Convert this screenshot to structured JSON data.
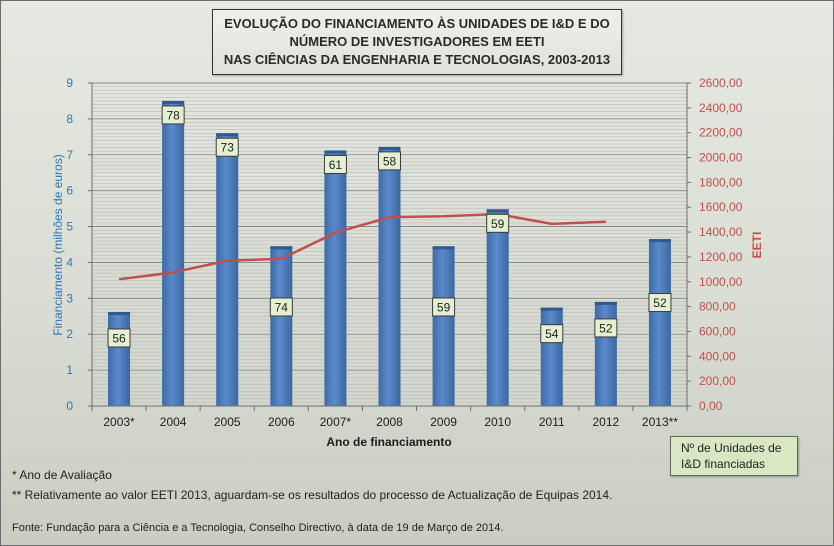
{
  "chart_data": {
    "type": "bar",
    "title_lines": [
      "EVOLUÇÃO DO FINANCIAMENTO ÀS UNIDADES DE I&D E DO",
      "NÚMERO DE INVESTIGADORES EM EETI",
      "NAS CIÊNCIAS DA ENGENHARIA E TECNOLOGIAS, 2003-2013"
    ],
    "xlabel": "Ano de financiamento",
    "ylabel": "Financiamento (milhões de euros)",
    "y2label": "EETI",
    "categories": [
      "2003*",
      "2004",
      "2005",
      "2006",
      "2007*",
      "2008",
      "2009",
      "2010",
      "2011",
      "2012",
      "2013**"
    ],
    "ylim": [
      0,
      9
    ],
    "y_ticks": [
      "0",
      "1",
      "2",
      "3",
      "4",
      "5",
      "6",
      "7",
      "8",
      "9"
    ],
    "y2lim": [
      0,
      2600
    ],
    "y2_ticks": [
      "0,00",
      "200,00",
      "400,00",
      "600,00",
      "800,00",
      "1000,00",
      "1200,00",
      "1400,00",
      "1600,00",
      "1800,00",
      "2000,00",
      "2200,00",
      "2400,00",
      "2600,00"
    ],
    "series": [
      {
        "kind": "bar",
        "values": [
          2.62,
          8.5,
          7.6,
          4.45,
          7.12,
          7.22,
          4.45,
          5.48,
          2.74,
          2.9,
          4.65
        ],
        "labels": [
          "56",
          "78",
          "73",
          "74",
          "61",
          "58",
          "59",
          "59",
          "54",
          "52",
          "52"
        ],
        "color": "#4f81bd"
      },
      {
        "kind": "line",
        "axis": "right",
        "values": [
          1020,
          1075,
          1170,
          1185,
          1395,
          1520,
          1527,
          1545,
          1466,
          1483,
          null
        ],
        "color": "#c0504d"
      }
    ],
    "grid": true,
    "legend_text": [
      "Nº de Unidades de",
      "I&D  financiadas"
    ]
  },
  "notes": [
    "* Ano de Avaliação",
    "** Relativamente ao valor EETI 2013, aguardam-se os resultados do processo de Actualização de Equipas 2014."
  ],
  "source": "Fonte: Fundação para a Ciência e a Tecnologia, Conselho Directivo, à data de 19 de Março de 2014."
}
